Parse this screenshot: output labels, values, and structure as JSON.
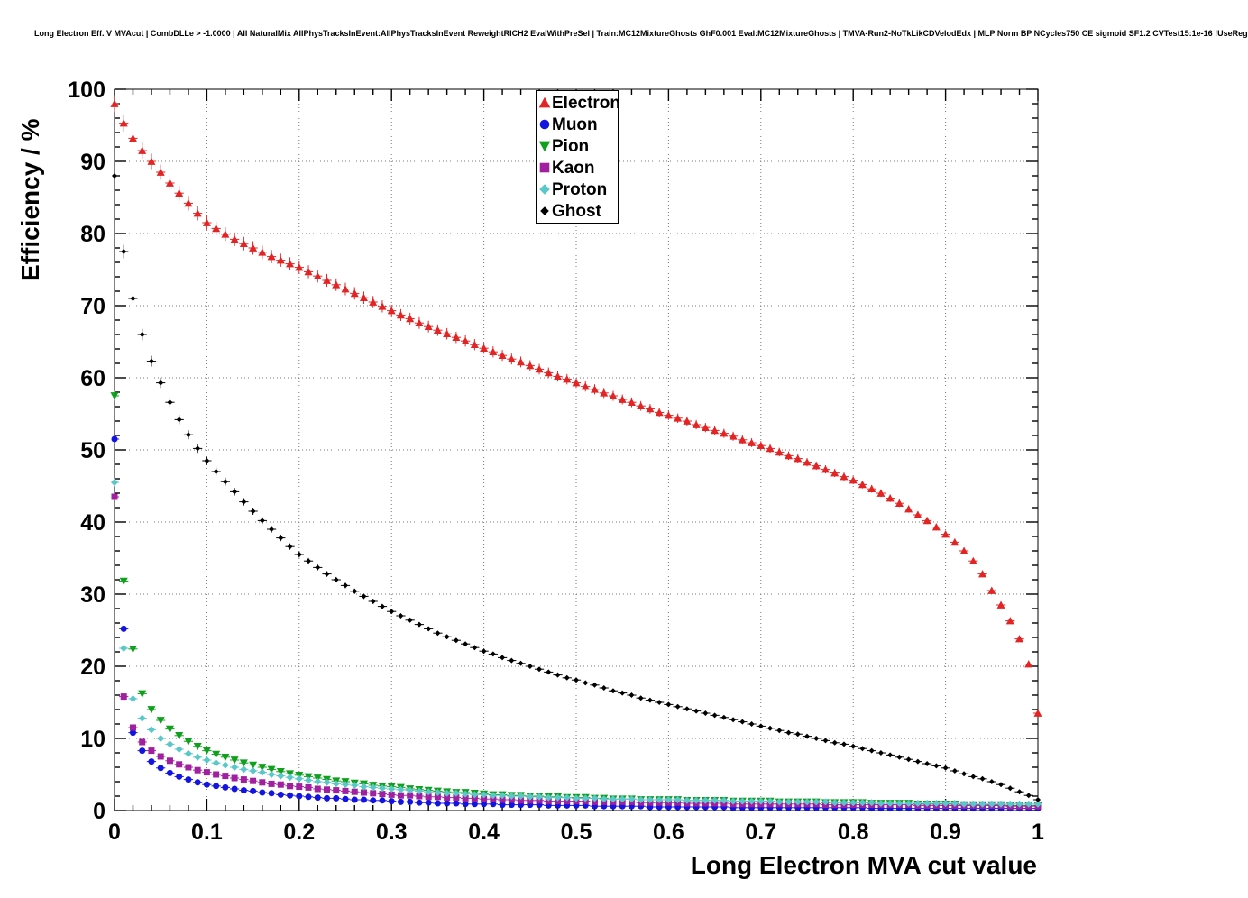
{
  "page": {
    "header_title": "Long Electron Eff. V MVAcut | CombDLLe > -1.0000 | All NaturalMix AllPhysTracksInEvent:AllPhysTracksInEvent ReweightRICH2 EvalWithPreSel | Train:MC12MixtureGhosts GhF0.001 Eval:MC12MixtureGhosts | TMVA-Run2-NoTkLikCDVelodEdx | MLP Norm BP NCycles750 CE sigmoid SF1.2 CVTest15:1e-16 !UseReg"
  },
  "chart_data": {
    "type": "scatter",
    "title": "",
    "xlabel": "Long Electron MVA cut value",
    "ylabel": "Efficiency / %",
    "xlim": [
      0,
      1
    ],
    "ylim": [
      0,
      100
    ],
    "grid": "dotted",
    "legend_position": "top-center",
    "x_ticks": [
      0,
      0.1,
      0.2,
      0.3,
      0.4,
      0.5,
      0.6,
      0.7,
      0.8,
      0.9,
      1
    ],
    "x_tick_labels": [
      "0",
      "0.1",
      "0.2",
      "0.3",
      "0.4",
      "0.5",
      "0.6",
      "0.7",
      "0.8",
      "0.9",
      "1"
    ],
    "y_ticks": [
      0,
      10,
      20,
      30,
      40,
      50,
      60,
      70,
      80,
      90,
      100
    ],
    "y_tick_labels": [
      "0",
      "10",
      "20",
      "30",
      "40",
      "50",
      "60",
      "70",
      "80",
      "90",
      "100"
    ],
    "x_minor_divisions": 5,
    "y_minor_divisions": 5,
    "x_start": 0,
    "x_step": 0.01,
    "x_error_half": 0.005,
    "series": [
      {
        "name": "Electron",
        "marker": "triangle-up",
        "color": "#e32424",
        "marker_size": 4.5,
        "values": [
          98.0,
          95.3,
          93.2,
          91.5,
          90.0,
          88.5,
          87.0,
          85.6,
          84.2,
          82.8,
          81.5,
          80.7,
          79.9,
          79.2,
          78.6,
          78.0,
          77.4,
          76.8,
          76.3,
          75.8,
          75.3,
          74.7,
          74.1,
          73.5,
          72.9,
          72.3,
          71.7,
          71.1,
          70.5,
          69.9,
          69.3,
          68.7,
          68.2,
          67.6,
          67.1,
          66.6,
          66.1,
          65.6,
          65.1,
          64.6,
          64.1,
          63.6,
          63.1,
          62.6,
          62.2,
          61.7,
          61.2,
          60.7,
          60.2,
          59.8,
          59.3,
          58.8,
          58.4,
          57.9,
          57.5,
          57.0,
          56.6,
          56.1,
          55.7,
          55.2,
          54.8,
          54.4,
          54.0,
          53.5,
          53.1,
          52.7,
          52.3,
          51.9,
          51.4,
          51.0,
          50.6,
          50.2,
          49.7,
          49.2,
          48.8,
          48.3,
          47.8,
          47.3,
          46.8,
          46.3,
          45.8,
          45.2,
          44.6,
          44.0,
          43.3,
          42.6,
          41.8,
          41.0,
          40.2,
          39.3,
          38.3,
          37.2,
          36.0,
          34.6,
          32.8,
          30.5,
          28.5,
          26.3,
          23.8,
          20.3,
          13.5
        ]
      },
      {
        "name": "Muon",
        "marker": "circle",
        "color": "#1414e0",
        "marker_size": 3.5,
        "values": [
          51.5,
          25.2,
          10.8,
          8.3,
          6.8,
          5.9,
          5.2,
          4.7,
          4.3,
          3.9,
          3.6,
          3.4,
          3.2,
          3.0,
          2.8,
          2.7,
          2.5,
          2.4,
          2.2,
          2.1,
          2.0,
          1.9,
          1.8,
          1.7,
          1.7,
          1.6,
          1.5,
          1.5,
          1.4,
          1.4,
          1.3,
          1.2,
          1.2,
          1.1,
          1.1,
          1.0,
          1.0,
          1.0,
          0.9,
          0.9,
          0.9,
          0.9,
          0.8,
          0.8,
          0.8,
          0.8,
          0.8,
          0.7,
          0.7,
          0.7,
          0.7,
          0.7,
          0.6,
          0.6,
          0.6,
          0.6,
          0.6,
          0.6,
          0.5,
          0.5,
          0.5,
          0.5,
          0.5,
          0.5,
          0.5,
          0.5,
          0.5,
          0.4,
          0.4,
          0.4,
          0.4,
          0.4,
          0.4,
          0.4,
          0.4,
          0.4,
          0.4,
          0.4,
          0.4,
          0.4,
          0.4,
          0.4,
          0.3,
          0.3,
          0.3,
          0.3,
          0.3,
          0.3,
          0.3,
          0.3,
          0.3,
          0.3,
          0.3,
          0.3,
          0.3,
          0.3,
          0.3,
          0.3,
          0.3,
          0.3,
          0.3
        ]
      },
      {
        "name": "Pion",
        "marker": "triangle-down",
        "color": "#0fa01e",
        "marker_size": 4.5,
        "values": [
          57.5,
          31.8,
          22.4,
          16.2,
          14.0,
          12.5,
          11.3,
          10.4,
          9.6,
          8.9,
          8.3,
          7.8,
          7.4,
          7.0,
          6.6,
          6.3,
          6.0,
          5.7,
          5.4,
          5.1,
          4.9,
          4.7,
          4.5,
          4.3,
          4.1,
          4.0,
          3.8,
          3.7,
          3.5,
          3.4,
          3.3,
          3.2,
          3.0,
          2.9,
          2.8,
          2.7,
          2.6,
          2.5,
          2.5,
          2.4,
          2.3,
          2.2,
          2.2,
          2.1,
          2.1,
          2.0,
          2.0,
          1.9,
          1.9,
          1.8,
          1.8,
          1.8,
          1.7,
          1.7,
          1.6,
          1.6,
          1.6,
          1.5,
          1.5,
          1.5,
          1.5,
          1.5,
          1.4,
          1.4,
          1.4,
          1.4,
          1.4,
          1.3,
          1.3,
          1.3,
          1.3,
          1.3,
          1.2,
          1.2,
          1.2,
          1.2,
          1.2,
          1.1,
          1.1,
          1.1,
          1.1,
          1.1,
          1.0,
          1.0,
          1.0,
          1.0,
          1.0,
          0.9,
          0.9,
          0.9,
          0.9,
          0.9,
          0.8,
          0.8,
          0.8,
          0.8,
          0.8,
          0.7,
          0.7,
          0.7,
          0.7
        ]
      },
      {
        "name": "Kaon",
        "marker": "square",
        "color": "#a020a0",
        "marker_size": 3.5,
        "values": [
          43.5,
          15.8,
          11.5,
          9.5,
          8.3,
          7.5,
          6.9,
          6.4,
          6.0,
          5.6,
          5.3,
          5.0,
          4.8,
          4.5,
          4.3,
          4.1,
          3.9,
          3.7,
          3.6,
          3.4,
          3.3,
          3.2,
          3.0,
          2.9,
          2.8,
          2.7,
          2.6,
          2.5,
          2.4,
          2.3,
          2.2,
          2.1,
          2.1,
          2.0,
          1.9,
          1.9,
          1.8,
          1.8,
          1.7,
          1.7,
          1.6,
          1.6,
          1.5,
          1.5,
          1.4,
          1.4,
          1.4,
          1.3,
          1.3,
          1.3,
          1.3,
          1.3,
          1.2,
          1.2,
          1.2,
          1.2,
          1.2,
          1.1,
          1.1,
          1.1,
          1.1,
          1.1,
          1.0,
          1.0,
          1.0,
          1.0,
          1.0,
          0.9,
          0.9,
          0.9,
          0.9,
          0.9,
          0.9,
          0.9,
          0.9,
          0.9,
          0.9,
          0.8,
          0.8,
          0.8,
          0.8,
          0.8,
          0.8,
          0.8,
          0.8,
          0.8,
          0.8,
          0.7,
          0.7,
          0.7,
          0.7,
          0.7,
          0.7,
          0.7,
          0.7,
          0.7,
          0.7,
          0.6,
          0.6,
          0.6,
          0.6
        ]
      },
      {
        "name": "Proton",
        "marker": "diamond",
        "color": "#5ac8c8",
        "marker_size": 4,
        "values": [
          45.5,
          22.5,
          15.5,
          12.8,
          11.2,
          10.0,
          9.2,
          8.5,
          7.9,
          7.4,
          7.0,
          6.6,
          6.3,
          6.0,
          5.7,
          5.5,
          5.3,
          5.0,
          4.8,
          4.6,
          4.4,
          4.2,
          4.0,
          3.9,
          3.7,
          3.6,
          3.5,
          3.3,
          3.2,
          3.1,
          3.0,
          2.9,
          2.8,
          2.7,
          2.6,
          2.5,
          2.4,
          2.4,
          2.3,
          2.2,
          2.2,
          2.1,
          2.1,
          2.0,
          2.0,
          1.9,
          1.9,
          1.8,
          1.8,
          1.8,
          1.7,
          1.7,
          1.7,
          1.6,
          1.6,
          1.6,
          1.6,
          1.5,
          1.5,
          1.5,
          1.5,
          1.5,
          1.4,
          1.4,
          1.4,
          1.4,
          1.4,
          1.3,
          1.3,
          1.3,
          1.3,
          1.3,
          1.2,
          1.2,
          1.2,
          1.2,
          1.2,
          1.2,
          1.1,
          1.1,
          1.1,
          1.1,
          1.1,
          1.0,
          1.0,
          1.0,
          1.0,
          1.0,
          1.0,
          1.0,
          1.0,
          1.0,
          0.9,
          0.9,
          0.9,
          0.9,
          0.9,
          0.9,
          0.9,
          0.9,
          0.9
        ]
      },
      {
        "name": "Ghost",
        "marker": "diamond",
        "color": "#000000",
        "marker_size": 3,
        "values": [
          88.0,
          77.5,
          71.0,
          66.0,
          62.3,
          59.3,
          56.6,
          54.2,
          52.1,
          50.2,
          48.5,
          47.0,
          45.6,
          44.2,
          42.8,
          41.5,
          40.2,
          39.0,
          37.8,
          36.6,
          35.5,
          34.6,
          33.7,
          32.8,
          32.0,
          31.2,
          30.4,
          29.7,
          29.0,
          28.3,
          27.6,
          27.0,
          26.4,
          25.8,
          25.2,
          24.6,
          24.1,
          23.6,
          23.1,
          22.6,
          22.1,
          21.7,
          21.2,
          20.8,
          20.4,
          20.0,
          19.6,
          19.2,
          18.8,
          18.4,
          18.1,
          17.7,
          17.4,
          17.0,
          16.6,
          16.3,
          16.0,
          15.6,
          15.3,
          15.0,
          14.7,
          14.4,
          14.1,
          13.8,
          13.5,
          13.2,
          12.9,
          12.6,
          12.3,
          12.0,
          11.7,
          11.4,
          11.1,
          10.8,
          10.6,
          10.3,
          10.0,
          9.7,
          9.4,
          9.2,
          8.9,
          8.6,
          8.3,
          8.0,
          7.7,
          7.4,
          7.1,
          6.8,
          6.5,
          6.2,
          5.9,
          5.5,
          5.1,
          4.7,
          4.4,
          4.0,
          3.6,
          3.1,
          2.6,
          2.1,
          1.5
        ]
      }
    ]
  }
}
